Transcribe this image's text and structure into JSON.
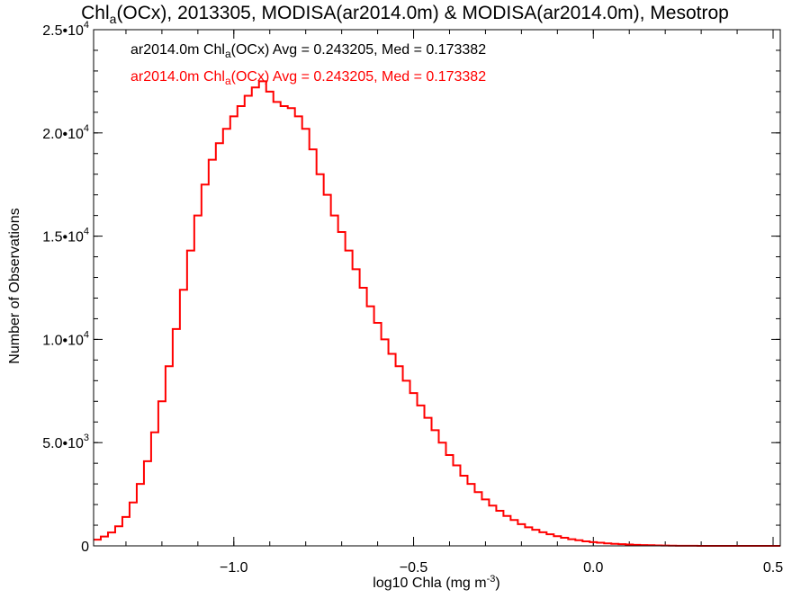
{
  "chart_data": {
    "type": "step-histogram",
    "title": {
      "pre": "Chl",
      "sub": "a",
      "post": "(OCx), 2013305, MODISA(ar2014.0m) & MODISA(ar2014.0m), Mesotrop"
    },
    "xlabel": {
      "pre": "log10 Chla (mg m",
      "sup": "-3",
      "post": ")"
    },
    "ylabel": "Number of Observations",
    "xlim": [
      -1.39,
      0.52
    ],
    "ylim": [
      0,
      25000
    ],
    "x_ticks": [
      {
        "value": -1.0,
        "label": "−1.0"
      },
      {
        "value": -0.5,
        "label": "−0.5"
      },
      {
        "value": 0.0,
        "label": "0.0"
      },
      {
        "value": 0.5,
        "label": "0.5"
      }
    ],
    "y_ticks": [
      {
        "value": 0,
        "mant": "0",
        "exp": ""
      },
      {
        "value": 5000,
        "mant": "5.0•10",
        "exp": "3"
      },
      {
        "value": 10000,
        "mant": "1.0•10",
        "exp": "4"
      },
      {
        "value": 15000,
        "mant": "1.5•10",
        "exp": "4"
      },
      {
        "value": 20000,
        "mant": "2.0•10",
        "exp": "4"
      },
      {
        "value": 25000,
        "mant": "2.5•10",
        "exp": "4"
      }
    ],
    "annotations": [
      {
        "pre": "ar2014.0m Chl",
        "sub": "a",
        "post": "(OCx) Avg = 0.243205, Med = 0.173382",
        "color": "#000000"
      },
      {
        "pre": "ar2014.0m Chl",
        "sub": "a",
        "post": "(OCx) Avg = 0.243205, Med = 0.173382",
        "color": "#ff0000"
      }
    ],
    "series": [
      {
        "color": "#ff0000",
        "x": [
          -1.39,
          -1.37,
          -1.35,
          -1.33,
          -1.31,
          -1.29,
          -1.27,
          -1.25,
          -1.23,
          -1.21,
          -1.19,
          -1.17,
          -1.15,
          -1.13,
          -1.11,
          -1.09,
          -1.07,
          -1.05,
          -1.03,
          -1.01,
          -0.99,
          -0.97,
          -0.95,
          -0.93,
          -0.91,
          -0.89,
          -0.87,
          -0.85,
          -0.83,
          -0.81,
          -0.79,
          -0.77,
          -0.75,
          -0.73,
          -0.71,
          -0.69,
          -0.67,
          -0.65,
          -0.63,
          -0.61,
          -0.59,
          -0.57,
          -0.55,
          -0.53,
          -0.51,
          -0.49,
          -0.47,
          -0.45,
          -0.43,
          -0.41,
          -0.39,
          -0.37,
          -0.35,
          -0.33,
          -0.31,
          -0.29,
          -0.27,
          -0.25,
          -0.23,
          -0.21,
          -0.19,
          -0.17,
          -0.15,
          -0.13,
          -0.11,
          -0.09,
          -0.07,
          -0.05,
          -0.03,
          -0.01,
          0.01,
          0.03,
          0.05,
          0.07,
          0.09,
          0.11,
          0.13,
          0.15,
          0.17,
          0.19,
          0.21,
          0.23,
          0.25,
          0.27,
          0.29,
          0.31,
          0.33,
          0.35,
          0.37,
          0.39,
          0.41,
          0.43,
          0.45,
          0.47,
          0.49,
          0.51
        ],
        "values": [
          300,
          450,
          650,
          950,
          1400,
          2100,
          3000,
          4100,
          5500,
          7000,
          8700,
          10500,
          12400,
          14300,
          16000,
          17500,
          18700,
          19500,
          20200,
          20800,
          21300,
          21800,
          22200,
          22500,
          22000,
          21500,
          21300,
          21200,
          20800,
          20200,
          19200,
          18000,
          17000,
          16000,
          15200,
          14300,
          13400,
          12500,
          11600,
          10800,
          10000,
          9300,
          8700,
          8000,
          7400,
          6800,
          6200,
          5600,
          5000,
          4400,
          3900,
          3400,
          3000,
          2600,
          2250,
          1950,
          1700,
          1450,
          1250,
          1050,
          900,
          780,
          660,
          560,
          470,
          390,
          320,
          270,
          220,
          180,
          150,
          120,
          100,
          80,
          65,
          50,
          40,
          30,
          20,
          15,
          10,
          8,
          5,
          3,
          2,
          1,
          1,
          0,
          0,
          0,
          0,
          0,
          0,
          0,
          0,
          0
        ]
      }
    ]
  }
}
